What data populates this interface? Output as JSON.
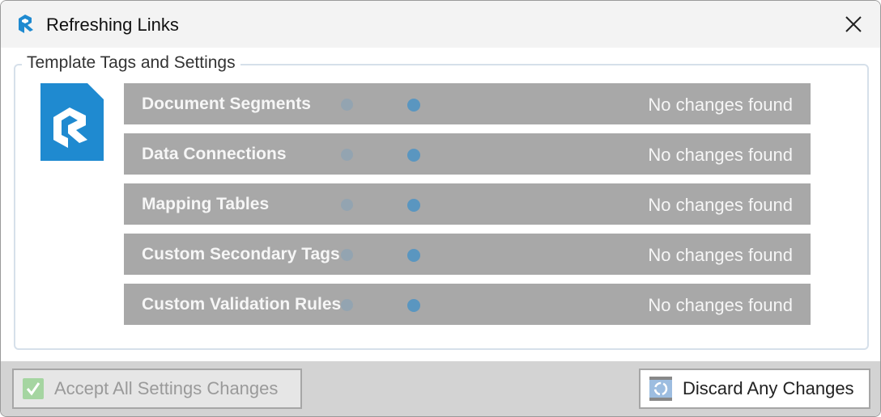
{
  "window": {
    "title": "Refreshing Links",
    "close_icon": "close-icon",
    "brand_color": "#1f8ad0"
  },
  "group": {
    "label": "Template Tags and Settings"
  },
  "rows": [
    {
      "label": "Document Segments",
      "status": "No changes found"
    },
    {
      "label": "Data Connections",
      "status": "No changes found"
    },
    {
      "label": "Mapping Tables",
      "status": "No changes found"
    },
    {
      "label": "Custom Secondary Tags",
      "status": "No changes found"
    },
    {
      "label": "Custom Validation Rules",
      "status": "No changes found"
    }
  ],
  "footer": {
    "accept_label": "Accept All Settings Changes",
    "accept_enabled": false,
    "discard_label": "Discard Any Changes"
  }
}
